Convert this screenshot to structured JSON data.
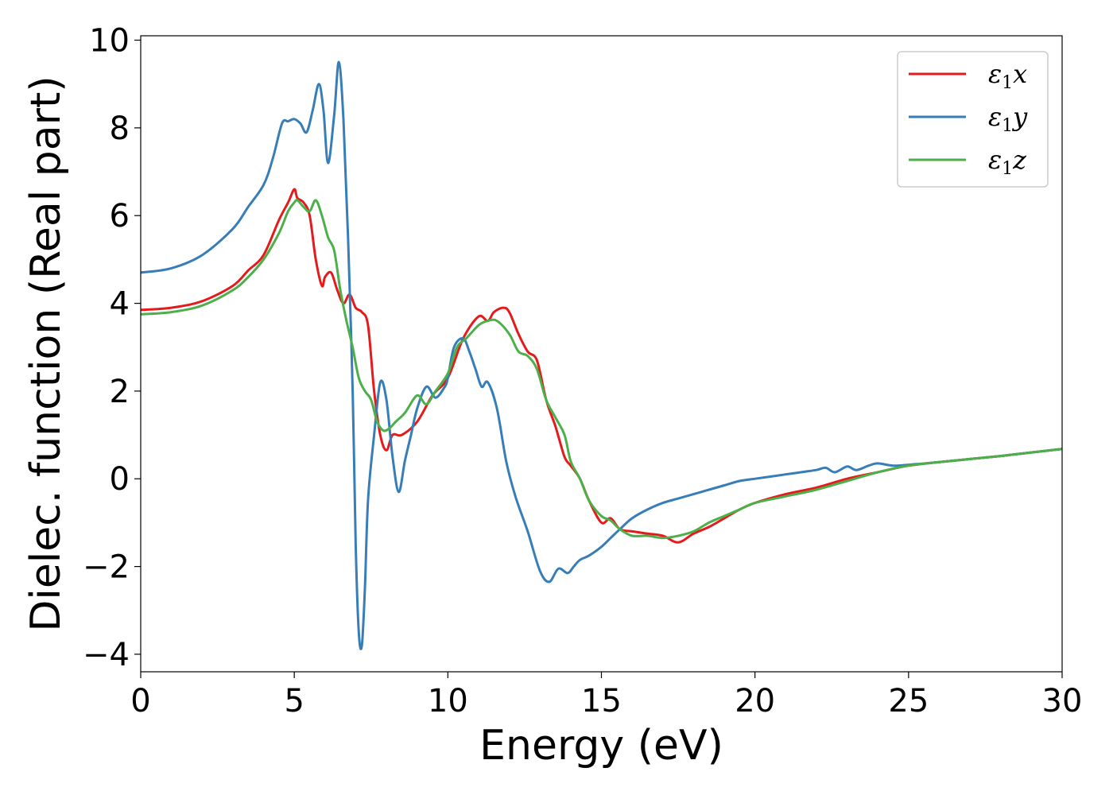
{
  "chart_data": {
    "type": "line",
    "xlabel": "Energy (eV)",
    "ylabel": "Dielec. function (Real part)",
    "xlim": [
      0,
      30
    ],
    "ylim": [
      -4.4,
      10.1
    ],
    "xticks": [
      0,
      5,
      10,
      15,
      20,
      25,
      30
    ],
    "yticks": [
      -4,
      -2,
      0,
      2,
      4,
      6,
      8,
      10
    ],
    "xtick_labels": [
      "0",
      "5",
      "10",
      "15",
      "20",
      "25",
      "30"
    ],
    "ytick_labels": [
      "−4",
      "−2",
      "0",
      "2",
      "4",
      "6",
      "8",
      "10"
    ],
    "grid": false,
    "legend_position": "top-right",
    "series": [
      {
        "name": "ε1x",
        "legend": {
          "base": "ε",
          "sub": "1",
          "var": "x"
        },
        "color": "#e41a1c",
        "x": [
          0,
          1,
          2,
          3,
          3.5,
          4,
          4.5,
          4.8,
          5.0,
          5.1,
          5.3,
          5.5,
          5.7,
          5.9,
          6.0,
          6.2,
          6.4,
          6.6,
          6.8,
          7.0,
          7.2,
          7.4,
          7.6,
          7.8,
          8.0,
          8.2,
          8.5,
          9.0,
          9.5,
          10.0,
          10.5,
          11.0,
          11.3,
          11.5,
          11.8,
          12.0,
          12.3,
          12.6,
          12.9,
          13.2,
          13.5,
          13.8,
          14.0,
          14.3,
          14.6,
          15.0,
          15.3,
          15.6,
          16.0,
          16.5,
          17.0,
          17.5,
          18.0,
          18.5,
          19.0,
          19.5,
          20.0,
          21.0,
          22.0,
          23.0,
          24.0,
          25.0,
          26.0,
          27.0,
          28.0,
          29.0,
          30.0
        ],
        "y": [
          3.85,
          3.9,
          4.05,
          4.4,
          4.75,
          5.1,
          5.9,
          6.3,
          6.6,
          6.4,
          6.3,
          6.0,
          5.0,
          4.4,
          4.6,
          4.7,
          4.3,
          4.0,
          4.2,
          3.9,
          3.8,
          3.5,
          2.0,
          1.0,
          0.65,
          1.0,
          1.0,
          1.3,
          1.9,
          2.3,
          3.2,
          3.7,
          3.6,
          3.8,
          3.9,
          3.8,
          3.3,
          2.9,
          2.7,
          1.8,
          1.2,
          0.5,
          0.3,
          0.0,
          -0.5,
          -1.0,
          -0.9,
          -1.15,
          -1.2,
          -1.25,
          -1.3,
          -1.45,
          -1.25,
          -1.1,
          -0.9,
          -0.7,
          -0.55,
          -0.35,
          -0.2,
          0.0,
          0.15,
          0.3,
          0.38,
          0.45,
          0.52,
          0.6,
          0.68
        ]
      },
      {
        "name": "ε1y",
        "legend": {
          "base": "ε",
          "sub": "1",
          "var": "y"
        },
        "color": "#377eb8",
        "x": [
          0,
          1,
          2,
          3,
          3.5,
          4,
          4.3,
          4.6,
          4.8,
          5.0,
          5.2,
          5.4,
          5.6,
          5.8,
          5.95,
          6.1,
          6.3,
          6.45,
          6.6,
          6.75,
          6.9,
          7.0,
          7.1,
          7.2,
          7.3,
          7.4,
          7.6,
          7.8,
          8.0,
          8.2,
          8.4,
          8.6,
          8.8,
          9.0,
          9.3,
          9.6,
          9.9,
          10.0,
          10.2,
          10.5,
          10.7,
          10.9,
          11.1,
          11.3,
          11.6,
          11.9,
          12.2,
          12.6,
          13.0,
          13.3,
          13.6,
          13.9,
          14.1,
          14.3,
          14.6,
          15.0,
          15.3,
          15.6,
          16.0,
          16.5,
          17.0,
          17.5,
          18.0,
          18.5,
          19.0,
          19.5,
          20.0,
          20.5,
          21.0,
          21.5,
          22.0,
          22.3,
          22.6,
          23.0,
          23.3,
          23.7,
          24.0,
          24.5,
          25.0,
          26.0,
          27.0,
          28.0,
          29.0,
          30.0
        ],
        "y": [
          4.7,
          4.8,
          5.1,
          5.7,
          6.2,
          6.7,
          7.3,
          8.1,
          8.15,
          8.2,
          8.1,
          7.9,
          8.4,
          9.0,
          8.4,
          7.2,
          8.3,
          9.5,
          8.2,
          5.5,
          2.0,
          -1.5,
          -3.5,
          -3.8,
          -2.5,
          -0.5,
          1.0,
          2.2,
          1.8,
          0.5,
          -0.3,
          0.4,
          1.0,
          1.6,
          2.1,
          1.85,
          2.1,
          2.3,
          3.0,
          3.2,
          2.9,
          2.5,
          2.1,
          2.2,
          1.6,
          0.4,
          -0.4,
          -1.2,
          -2.1,
          -2.35,
          -2.05,
          -2.15,
          -2.0,
          -1.85,
          -1.75,
          -1.55,
          -1.35,
          -1.15,
          -0.9,
          -0.7,
          -0.55,
          -0.45,
          -0.35,
          -0.25,
          -0.15,
          -0.05,
          0.0,
          0.05,
          0.1,
          0.15,
          0.2,
          0.25,
          0.15,
          0.28,
          0.2,
          0.3,
          0.35,
          0.3,
          0.32,
          0.38,
          0.45,
          0.52,
          0.6,
          0.68
        ]
      },
      {
        "name": "ε1z",
        "legend": {
          "base": "ε",
          "sub": "1",
          "var": "z"
        },
        "color": "#4daf4a",
        "x": [
          0,
          1,
          2,
          3,
          3.5,
          4,
          4.5,
          4.8,
          5.0,
          5.1,
          5.3,
          5.5,
          5.7,
          5.9,
          6.1,
          6.3,
          6.5,
          6.7,
          6.9,
          7.1,
          7.3,
          7.5,
          7.7,
          7.9,
          8.1,
          8.3,
          8.6,
          9.0,
          9.3,
          9.6,
          10.0,
          10.3,
          10.6,
          11.0,
          11.3,
          11.6,
          12.0,
          12.3,
          12.6,
          12.9,
          13.2,
          13.5,
          13.8,
          14.0,
          14.3,
          14.6,
          15.0,
          15.3,
          15.6,
          16.0,
          16.5,
          17.0,
          17.5,
          18.0,
          18.5,
          19.0,
          19.5,
          20.0,
          21.0,
          22.0,
          23.0,
          24.0,
          25.0,
          26.0,
          27.0,
          28.0,
          29.0,
          30.0
        ],
        "y": [
          3.75,
          3.8,
          3.95,
          4.3,
          4.6,
          5.0,
          5.6,
          6.1,
          6.3,
          6.35,
          6.2,
          6.1,
          6.35,
          6.0,
          5.5,
          5.2,
          4.3,
          3.6,
          3.0,
          2.3,
          2.0,
          1.8,
          1.3,
          1.1,
          1.15,
          1.3,
          1.5,
          1.9,
          1.7,
          2.0,
          2.4,
          3.0,
          3.2,
          3.5,
          3.6,
          3.6,
          3.3,
          2.9,
          2.8,
          2.5,
          1.8,
          1.4,
          1.0,
          0.4,
          0.0,
          -0.5,
          -0.85,
          -0.95,
          -1.15,
          -1.3,
          -1.3,
          -1.35,
          -1.3,
          -1.2,
          -1.0,
          -0.85,
          -0.7,
          -0.55,
          -0.4,
          -0.25,
          -0.05,
          0.15,
          0.3,
          0.38,
          0.45,
          0.52,
          0.6,
          0.68
        ]
      }
    ]
  }
}
